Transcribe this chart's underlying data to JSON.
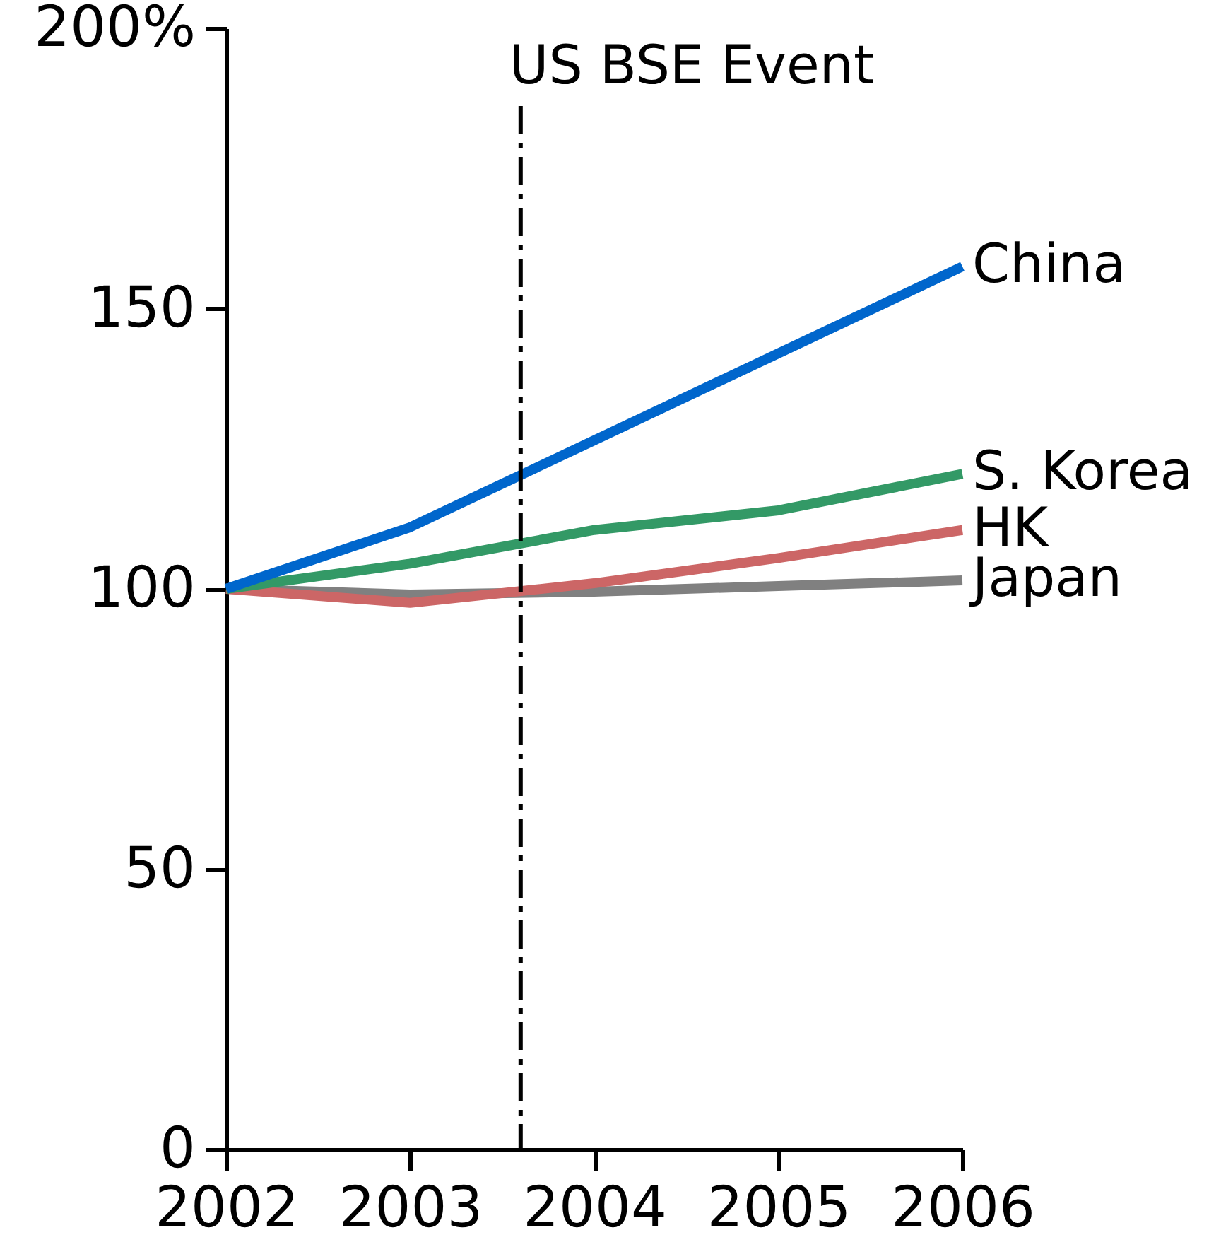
{
  "chart_data": {
    "type": "line",
    "x": [
      2002,
      2003,
      2004,
      2005,
      2006
    ],
    "xlim": [
      2002,
      2006
    ],
    "xticks": [
      2002,
      2003,
      2004,
      2005,
      2006
    ],
    "ylim": [
      0,
      200
    ],
    "yticks": [
      0,
      50,
      100,
      150,
      {
        "value": 200,
        "label": "200%"
      }
    ],
    "series": [
      {
        "name": "China",
        "color": "#0066cc",
        "values": [
          100,
          111,
          126.5,
          142,
          157.5
        ]
      },
      {
        "name": "S. Korea",
        "color": "#339966",
        "values": [
          100,
          104.5,
          110.5,
          114,
          120.5
        ]
      },
      {
        "name": "HK",
        "color": "#cc6666",
        "values": [
          100,
          97.5,
          101,
          105.5,
          110.5
        ]
      },
      {
        "name": "Japan",
        "color": "#808080",
        "values": [
          100,
          99,
          99.5,
          100.5,
          101.5
        ]
      }
    ],
    "ref_lines": [
      {
        "axis": "x",
        "value": 2003.6,
        "label": "US BSE Event",
        "line_style": "dashdot",
        "color": "#000000"
      }
    ]
  }
}
